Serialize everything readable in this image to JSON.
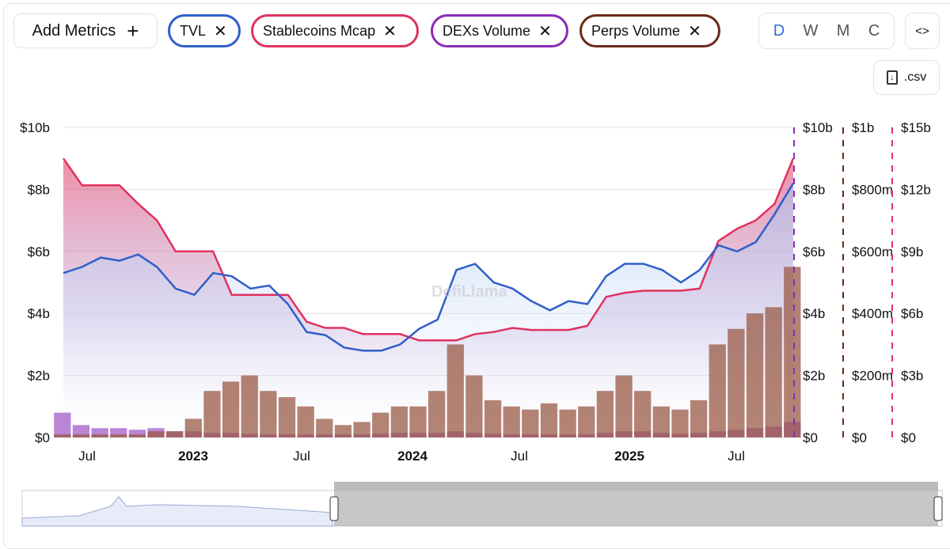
{
  "toolbar": {
    "add_metrics": "Add Metrics",
    "add_icon": "+",
    "metrics": [
      {
        "label": "TVL",
        "color": "#2f5fc9"
      },
      {
        "label": "Stablecoins Mcap",
        "color": "#e0325f"
      },
      {
        "label": "DEXs Volume",
        "color": "#8c2bb8"
      },
      {
        "label": "Perps Volume",
        "color": "#6b2a17"
      }
    ],
    "remove_icon": "✕",
    "granularity": [
      "D",
      "W",
      "M",
      "C"
    ],
    "active_granularity": "D",
    "embed_label": "<>",
    "csv_label": ".csv"
  },
  "watermark": "DefiLlama",
  "chart_data": {
    "type": "line",
    "x_ticks": [
      "Jul",
      "2023",
      "Jul",
      "2024",
      "Jul",
      "2025",
      "Jul"
    ],
    "x": [
      "2022-06",
      "2022-07",
      "2022-08",
      "2022-09",
      "2022-10",
      "2022-11",
      "2022-12",
      "2023-01",
      "2023-02",
      "2023-03",
      "2023-04",
      "2023-05",
      "2023-06",
      "2023-07",
      "2023-08",
      "2023-09",
      "2023-10",
      "2023-11",
      "2023-12",
      "2024-01",
      "2024-02",
      "2024-03",
      "2024-04",
      "2024-05",
      "2024-06",
      "2024-07",
      "2024-08",
      "2024-09",
      "2024-10",
      "2024-11",
      "2024-12",
      "2025-01",
      "2025-02",
      "2025-03",
      "2025-04",
      "2025-05",
      "2025-06",
      "2025-07",
      "2025-08",
      "2025-09"
    ],
    "axes": [
      {
        "name": "TVL",
        "ticks": [
          "$0",
          "$2b",
          "$4b",
          "$6b",
          "$8b",
          "$10b"
        ],
        "max": 10
      },
      {
        "name": "DEXs Volume",
        "ticks": [
          "$0",
          "$2b",
          "$4b",
          "$6b",
          "$8b",
          "$10b"
        ],
        "max": 10,
        "color": "#8c2bb8"
      },
      {
        "name": "Perps Volume",
        "ticks": [
          "$0",
          "$200m",
          "$400m",
          "$600m",
          "$800m",
          "$1b"
        ],
        "max": 1000,
        "color": "#6b2a17"
      },
      {
        "name": "Stablecoins Mcap",
        "ticks": [
          "$0",
          "$3b",
          "$6b",
          "$9b",
          "$12b",
          "$15b"
        ],
        "max": 15,
        "color": "#e0325f"
      }
    ],
    "series": [
      {
        "name": "TVL",
        "unit": "$b",
        "axis": 0,
        "values": [
          5.3,
          5.5,
          5.8,
          5.7,
          5.9,
          5.5,
          4.8,
          4.6,
          5.3,
          5.2,
          4.8,
          4.9,
          4.3,
          3.4,
          3.3,
          2.9,
          2.8,
          2.8,
          3.0,
          3.5,
          3.8,
          5.4,
          5.6,
          5.0,
          4.8,
          4.4,
          4.1,
          4.4,
          4.3,
          5.2,
          5.6,
          5.6,
          5.4,
          5.0,
          5.4,
          6.2,
          6.0,
          6.3,
          7.2,
          8.2
        ]
      },
      {
        "name": "Stablecoins Mcap",
        "unit": "$b",
        "axis": 3,
        "values": [
          13.5,
          12.2,
          12.2,
          12.2,
          11.3,
          10.5,
          9.0,
          9.0,
          9.0,
          6.9,
          6.9,
          6.9,
          6.9,
          5.6,
          5.3,
          5.3,
          5.0,
          5.0,
          5.0,
          4.7,
          4.7,
          4.7,
          5.0,
          5.1,
          5.3,
          5.2,
          5.2,
          5.2,
          5.4,
          6.8,
          7.0,
          7.1,
          7.1,
          7.1,
          7.2,
          9.5,
          10.1,
          10.5,
          11.3,
          13.5
        ]
      },
      {
        "name": "DEXs Volume",
        "unit": "$b",
        "axis": 1,
        "values": [
          0.8,
          0.4,
          0.3,
          0.3,
          0.25,
          0.3,
          0.2,
          0.2,
          0.15,
          0.15,
          0.12,
          0.1,
          0.1,
          0.1,
          0.1,
          0.1,
          0.1,
          0.12,
          0.15,
          0.15,
          0.15,
          0.2,
          0.15,
          0.12,
          0.1,
          0.1,
          0.1,
          0.1,
          0.1,
          0.15,
          0.2,
          0.2,
          0.15,
          0.12,
          0.15,
          0.2,
          0.25,
          0.3,
          0.35,
          0.5
        ]
      },
      {
        "name": "Perps Volume",
        "unit": "$m",
        "axis": 2,
        "values": [
          10,
          10,
          10,
          10,
          10,
          20,
          20,
          60,
          150,
          180,
          200,
          150,
          130,
          100,
          60,
          40,
          50,
          80,
          100,
          100,
          150,
          300,
          200,
          120,
          100,
          90,
          110,
          90,
          100,
          150,
          200,
          150,
          100,
          90,
          120,
          300,
          350,
          400,
          420,
          550
        ]
      }
    ]
  }
}
